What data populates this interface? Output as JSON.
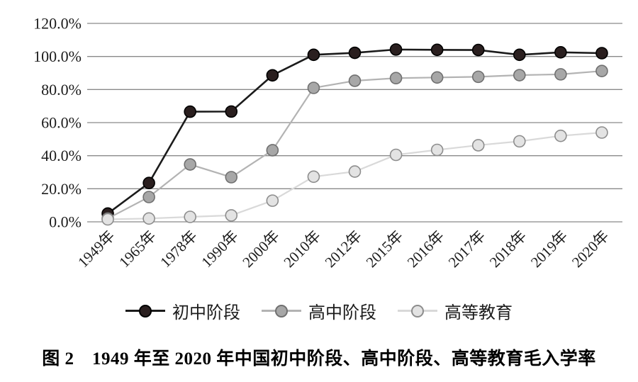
{
  "caption": "图 2　1949 年至 2020 年中国初中阶段、高中阶段、高等教育毛入学率",
  "figure_label": "图 2",
  "colors": {
    "background": "#ffffff",
    "gridline": "#8a8a8a",
    "text": "#1c1c1c"
  },
  "chart_data": {
    "type": "line",
    "title": "1949年至2020年中国初中阶段、高中阶段、高等教育毛入学率",
    "xlabel": "",
    "ylabel": "",
    "ylim": [
      0,
      120
    ],
    "ytick_step": 20,
    "ytick_labels": [
      "0.0%",
      "20.0%",
      "40.0%",
      "60.0%",
      "80.0%",
      "100.0%",
      "120.0%"
    ],
    "grid": "horizontal",
    "legend_position": "bottom",
    "categories": [
      "1949年",
      "1965年",
      "1978年",
      "1990年",
      "2000年",
      "2010年",
      "2012年",
      "2015年",
      "2016年",
      "2017年",
      "2018年",
      "2019年",
      "2020年"
    ],
    "series": [
      {
        "name": "初中阶段",
        "values": [
          5.0,
          23.5,
          66.6,
          66.7,
          88.6,
          101.0,
          102.2,
          104.2,
          104.0,
          103.9,
          101.0,
          102.5,
          102.0
        ],
        "line_color": "#1b1b1b",
        "marker_fill": "#2a1f1f",
        "marker_stroke": "#000000",
        "line_width": 2.6
      },
      {
        "name": "高中阶段",
        "values": [
          2.0,
          15.0,
          34.7,
          27.0,
          43.3,
          81.0,
          85.3,
          86.9,
          87.3,
          87.7,
          88.7,
          89.2,
          91.2
        ],
        "line_color": "#b3b3b3",
        "marker_fill": "#a7a7a7",
        "marker_stroke": "#707070",
        "line_width": 2.2
      },
      {
        "name": "高等教育",
        "values": [
          1.5,
          2.0,
          3.0,
          3.9,
          12.8,
          27.3,
          30.4,
          40.5,
          43.5,
          46.3,
          48.7,
          52.0,
          54.0
        ],
        "line_color": "#d9d9d9",
        "marker_fill": "#e3e3e3",
        "marker_stroke": "#8d8d8d",
        "line_width": 2.2
      }
    ]
  }
}
